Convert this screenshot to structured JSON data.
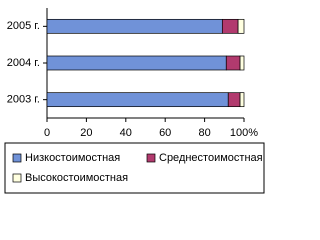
{
  "chart_data": {
    "type": "stacked-bar-horizontal",
    "categories": [
      "2005 г.",
      "2004 г.",
      "2003 г."
    ],
    "series": [
      {
        "name": "Низкостоимостная",
        "color": "#7092d8",
        "values": [
          89,
          91,
          92
        ]
      },
      {
        "name": "Среднестоимостная",
        "color": "#b23a6e",
        "values": [
          8,
          7,
          6
        ]
      },
      {
        "name": "Высокостоимостная",
        "color": "#ffffe0",
        "values": [
          3,
          2,
          2
        ]
      }
    ],
    "xlim": [
      0,
      100
    ],
    "xticks": [
      0,
      20,
      40,
      60,
      80,
      {
        "value": 100,
        "label": "100%"
      }
    ]
  }
}
